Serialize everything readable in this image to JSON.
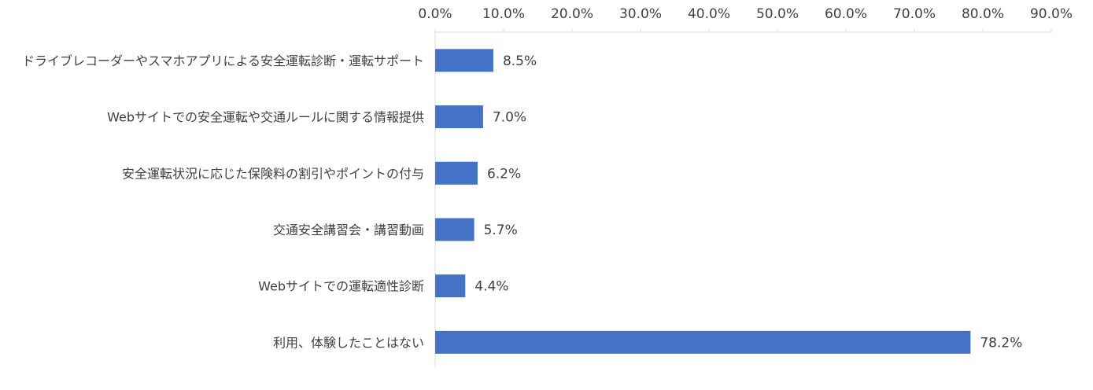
{
  "chart_data": {
    "type": "bar",
    "orientation": "horizontal",
    "categories": [
      "ドライブレコーダーやスマホアプリによる安全運転診断・運転サポート",
      "Webサイトでの安全運転や交通ルールに関する情報提供",
      "安全運転状況に応じた保険料の割引やポイントの付与",
      "交通安全講習会・講習動画",
      "Webサイトでの運転適性診断",
      "利用、体験したことはない"
    ],
    "values": [
      8.5,
      7.0,
      6.2,
      5.7,
      4.4,
      78.2
    ],
    "data_labels": [
      "8.5%",
      "7.0%",
      "6.2%",
      "5.7%",
      "4.4%",
      "78.2%"
    ],
    "xlim": [
      0,
      90
    ],
    "x_ticks": [
      0,
      10,
      20,
      30,
      40,
      50,
      60,
      70,
      80,
      90
    ],
    "x_tick_labels": [
      "0.0%",
      "10.0%",
      "20.0%",
      "30.0%",
      "40.0%",
      "50.0%",
      "60.0%",
      "70.0%",
      "80.0%",
      "90.0%"
    ],
    "axis_position": "top",
    "grid": false,
    "legend": "none",
    "bar_color": "#4472C4",
    "title": "",
    "xlabel": "",
    "ylabel": ""
  }
}
